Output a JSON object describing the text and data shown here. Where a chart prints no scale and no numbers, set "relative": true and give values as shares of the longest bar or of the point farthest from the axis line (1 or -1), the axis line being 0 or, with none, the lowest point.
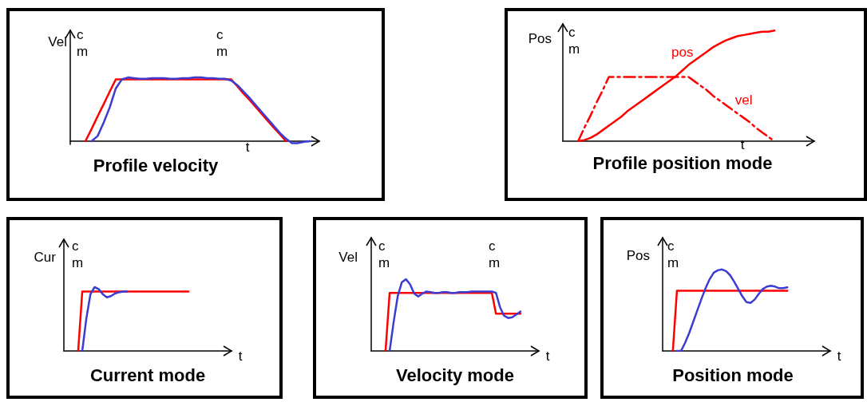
{
  "chart_data": [
    {
      "type": "line",
      "relative": true,
      "title": "Profile velocity",
      "ylabel": "Vel",
      "xlabel": "t",
      "annotations": [
        "c\nm",
        "c\nm"
      ],
      "categories": [
        null,
        null,
        null,
        null,
        null,
        null,
        null,
        null,
        null,
        null,
        null,
        null,
        null,
        null,
        null,
        null,
        null,
        null,
        null,
        null,
        null,
        null,
        null,
        null,
        null,
        null,
        null,
        null,
        null,
        null,
        null,
        null,
        null,
        null,
        null,
        null,
        null,
        null,
        null,
        null,
        null
      ],
      "series": [
        {
          "color": "#ff0000",
          "values": [
            null,
            null,
            0,
            0.19,
            0.39,
            0.58,
            0.78,
            0.97,
            0.97,
            0.97,
            0.97,
            0.97,
            0.97,
            0.97,
            0.97,
            0.97,
            0.97,
            0.97,
            0.97,
            0.97,
            0.97,
            0.97,
            0.97,
            0.97,
            0.97,
            0.97,
            0.97,
            0.86,
            0.75,
            0.65,
            0.54,
            0.43,
            0.32,
            0.21,
            0.11,
            0,
            null,
            null,
            null,
            null,
            null
          ]
        },
        {
          "color": "#3c3cd2",
          "values": [
            null,
            null,
            null,
            0,
            0.08,
            0.29,
            0.53,
            0.83,
            0.97,
            1,
            0.99,
            0.98,
            0.98,
            0.99,
            0.99,
            0.99,
            0.98,
            0.98,
            0.99,
            0.99,
            1,
            1,
            0.99,
            0.99,
            0.98,
            0.98,
            0.95,
            0.88,
            0.78,
            0.68,
            0.57,
            0.46,
            0.35,
            0.24,
            0.13,
            0.04,
            -0.03,
            -0.03,
            -0.01,
            0,
            null
          ]
        }
      ]
    },
    {
      "type": "line",
      "relative": true,
      "title": "Profile position mode",
      "ylabel": "Pos",
      "xlabel": "t",
      "annotations": [
        "c\nm"
      ],
      "categories": [
        null,
        null,
        null,
        null,
        null,
        null,
        null,
        null,
        null,
        null,
        null,
        null,
        null,
        null,
        null,
        null,
        null,
        null,
        null,
        null,
        null,
        null,
        null,
        null,
        null,
        null,
        null,
        null,
        null,
        null,
        null,
        null,
        null,
        null,
        null,
        null,
        null,
        null,
        null,
        null,
        null
      ],
      "series": [
        {
          "name": "vel",
          "color": "#ff0000",
          "line_style": "dashed",
          "values": [
            null,
            null,
            0,
            0.12,
            0.23,
            0.35,
            0.46,
            0.58,
            0.58,
            0.58,
            0.58,
            0.58,
            0.58,
            0.58,
            0.58,
            0.58,
            0.58,
            0.58,
            0.58,
            0.58,
            0.58,
            0.54,
            0.5,
            0.46,
            0.41,
            0.37,
            0.33,
            0.29,
            0.25,
            0.21,
            0.17,
            0.12,
            0.08,
            0.04,
            0,
            null,
            null,
            null,
            null,
            null,
            null
          ]
        },
        {
          "name": "pos",
          "color": "#ff0000",
          "values": [
            null,
            null,
            0,
            0.01,
            0.03,
            0.06,
            0.1,
            0.14,
            0.18,
            0.22,
            0.27,
            0.31,
            0.35,
            0.39,
            0.43,
            0.47,
            0.51,
            0.55,
            0.59,
            0.64,
            0.69,
            0.73,
            0.77,
            0.81,
            0.85,
            0.88,
            0.91,
            0.93,
            0.95,
            0.96,
            0.97,
            0.98,
            0.99,
            0.99,
            1,
            null,
            null,
            null,
            null,
            null,
            null
          ]
        }
      ]
    },
    {
      "type": "line",
      "relative": true,
      "title": "Current mode",
      "ylabel": "Cur",
      "xlabel": "t",
      "annotations": [
        "c\nm"
      ],
      "categories": [
        null,
        null,
        null,
        null,
        null,
        null,
        null,
        null,
        null,
        null,
        null,
        null,
        null,
        null,
        null,
        null,
        null,
        null,
        null,
        null,
        null,
        null,
        null,
        null,
        null,
        null,
        null,
        null,
        null,
        null,
        null,
        null,
        null,
        null,
        null,
        null,
        null,
        null,
        null,
        null,
        null
      ],
      "series": [
        {
          "color": "#ff0000",
          "values": [
            null,
            null,
            null,
            0,
            0.93,
            0.93,
            0.93,
            0.93,
            0.93,
            0.93,
            0.93,
            0.93,
            0.93,
            0.93,
            0.93,
            0.93,
            0.93,
            0.93,
            0.93,
            0.93,
            0.93,
            0.93,
            0.93,
            0.93,
            0.93,
            0.93,
            0.93,
            0.93,
            0.93,
            0.93,
            0.93,
            null,
            null,
            null,
            null,
            null,
            null,
            null,
            null,
            null,
            null
          ]
        },
        {
          "color": "#3c3cd2",
          "values": [
            null,
            null,
            null,
            null,
            0,
            0.51,
            0.89,
            1,
            0.97,
            0.89,
            0.84,
            0.86,
            0.9,
            0.92,
            0.93,
            0.93,
            null,
            null,
            null,
            null,
            null,
            null,
            null,
            null,
            null,
            null,
            null,
            null,
            null,
            null,
            null,
            null,
            null,
            null,
            null,
            null,
            null,
            null,
            null,
            null,
            null
          ]
        }
      ]
    },
    {
      "type": "line",
      "relative": true,
      "title": "Velocity mode",
      "ylabel": "Vel",
      "xlabel": "t",
      "annotations": [
        "c\nm",
        "c\nm"
      ],
      "categories": [
        null,
        null,
        null,
        null,
        null,
        null,
        null,
        null,
        null,
        null,
        null,
        null,
        null,
        null,
        null,
        null,
        null,
        null,
        null,
        null,
        null,
        null,
        null,
        null,
        null,
        null,
        null,
        null,
        null,
        null,
        null,
        null,
        null,
        null,
        null,
        null,
        null,
        null,
        null,
        null,
        null
      ],
      "series": [
        {
          "color": "#ff0000",
          "values": [
            null,
            null,
            null,
            0,
            0.81,
            0.81,
            0.81,
            0.81,
            0.81,
            0.81,
            0.81,
            0.81,
            0.81,
            0.81,
            0.81,
            0.81,
            0.81,
            0.81,
            0.81,
            0.81,
            0.81,
            0.81,
            0.81,
            0.81,
            0.81,
            0.81,
            0.81,
            0.81,
            0.81,
            0.81,
            0.52,
            0.52,
            0.52,
            0.52,
            0.52,
            0.52,
            0.52,
            null,
            null,
            null,
            null
          ]
        },
        {
          "color": "#3c3cd2",
          "values": [
            null,
            null,
            null,
            null,
            0,
            0.41,
            0.77,
            0.96,
            1,
            0.93,
            0.8,
            0.76,
            0.8,
            0.83,
            0.82,
            0.81,
            0.81,
            0.82,
            0.82,
            0.81,
            0.81,
            0.82,
            0.82,
            0.82,
            0.83,
            0.83,
            0.83,
            0.83,
            0.83,
            0.83,
            0.81,
            0.61,
            0.49,
            0.46,
            0.47,
            0.51,
            0.55,
            null,
            null,
            null,
            null
          ]
        }
      ]
    },
    {
      "type": "line",
      "relative": true,
      "title": "Position mode",
      "ylabel": "Pos",
      "xlabel": "t",
      "annotations": [
        "c\nm"
      ],
      "categories": [
        null,
        null,
        null,
        null,
        null,
        null,
        null,
        null,
        null,
        null,
        null,
        null,
        null,
        null,
        null,
        null,
        null,
        null,
        null,
        null,
        null,
        null,
        null,
        null,
        null,
        null,
        null,
        null,
        null,
        null,
        null,
        null,
        null,
        null,
        null,
        null,
        null,
        null,
        null,
        null,
        null
      ],
      "series": [
        {
          "color": "#ff0000",
          "values": [
            null,
            null,
            0,
            0.74,
            0.74,
            0.74,
            0.74,
            0.74,
            0.74,
            0.74,
            0.74,
            0.74,
            0.74,
            0.74,
            0.74,
            0.74,
            0.74,
            0.74,
            0.74,
            0.74,
            0.74,
            0.74,
            0.74,
            0.74,
            0.74,
            0.74,
            0.74,
            0.74,
            0.74,
            0.74,
            0.74,
            null,
            null,
            null,
            null,
            null,
            null,
            null,
            null,
            null,
            null
          ]
        },
        {
          "color": "#3c3cd2",
          "values": [
            null,
            null,
            null,
            0,
            0,
            0.1,
            0.22,
            0.36,
            0.5,
            0.64,
            0.77,
            0.88,
            0.96,
            0.99,
            1,
            0.98,
            0.93,
            0.85,
            0.76,
            0.67,
            0.6,
            0.59,
            0.63,
            0.7,
            0.76,
            0.79,
            0.8,
            0.79,
            0.77,
            0.77,
            0.78,
            null,
            null,
            null,
            null,
            null,
            null,
            null,
            null,
            null,
            null
          ]
        }
      ]
    }
  ]
}
